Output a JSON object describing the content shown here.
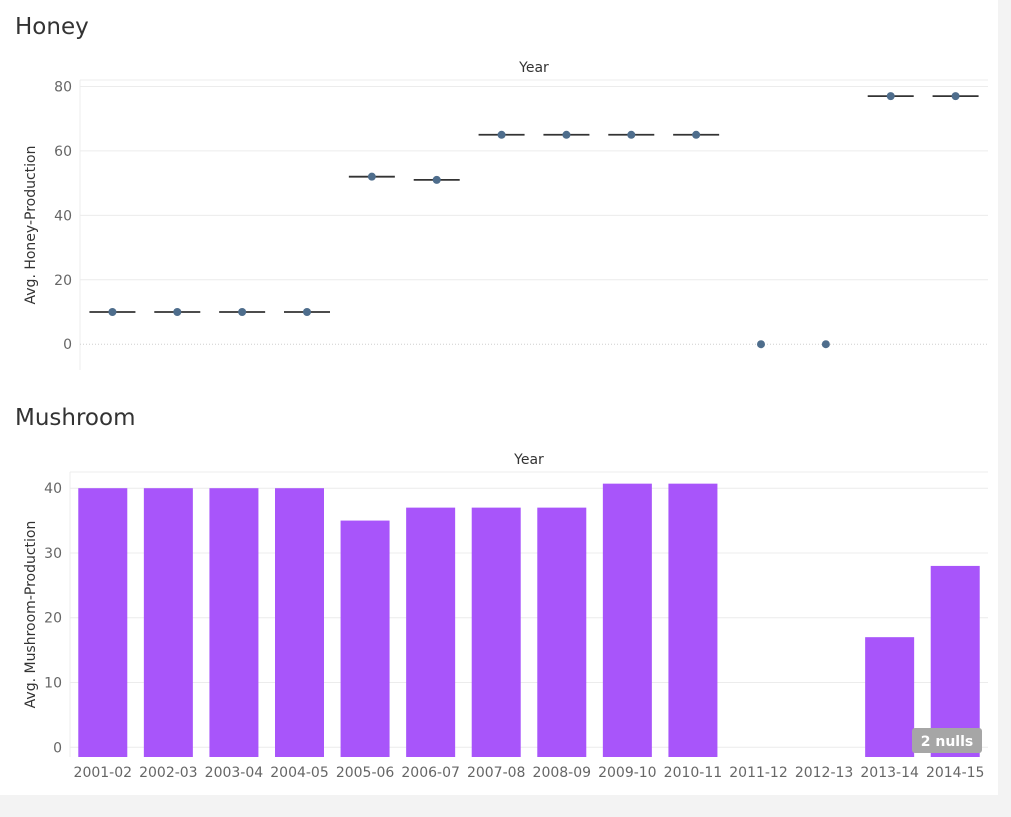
{
  "honey": {
    "title": "Honey",
    "chart_data": {
      "type": "scatter",
      "column_header": "Year",
      "ylabel": "Avg. Honey-Production",
      "categories": [
        "2001-02",
        "2002-03",
        "2003-04",
        "2004-05",
        "2005-06",
        "2006-07",
        "2007-08",
        "2008-09",
        "2009-10",
        "2010-11",
        "2011-12",
        "2012-13",
        "2013-14",
        "2014-15"
      ],
      "values": [
        10,
        10,
        10,
        10,
        52,
        51,
        65,
        65,
        65,
        65,
        0,
        0,
        77,
        77
      ],
      "reference_lines": [
        true,
        true,
        true,
        true,
        true,
        true,
        true,
        true,
        true,
        true,
        false,
        false,
        true,
        true
      ],
      "ylim": [
        -8,
        82
      ],
      "yticks": [
        0,
        20,
        40,
        60,
        80
      ],
      "grid": true,
      "color": "#4e6d8c"
    }
  },
  "mushroom": {
    "title": "Mushroom",
    "chart_data": {
      "type": "bar",
      "column_header": "Year",
      "ylabel": "Avg. Mushroom-Production",
      "categories": [
        "2001-02",
        "2002-03",
        "2003-04",
        "2004-05",
        "2005-06",
        "2006-07",
        "2007-08",
        "2008-09",
        "2009-10",
        "2010-11",
        "2011-12",
        "2012-13",
        "2013-14",
        "2014-15"
      ],
      "values": [
        40,
        40,
        40,
        40,
        35,
        37,
        37,
        37,
        40.7,
        40.7,
        null,
        null,
        17,
        28
      ],
      "ylim": [
        -1.5,
        42.5
      ],
      "yticks": [
        0,
        10,
        20,
        30,
        40
      ],
      "grid": true,
      "color": "#a855fa",
      "null_indicator": "2 nulls"
    }
  }
}
